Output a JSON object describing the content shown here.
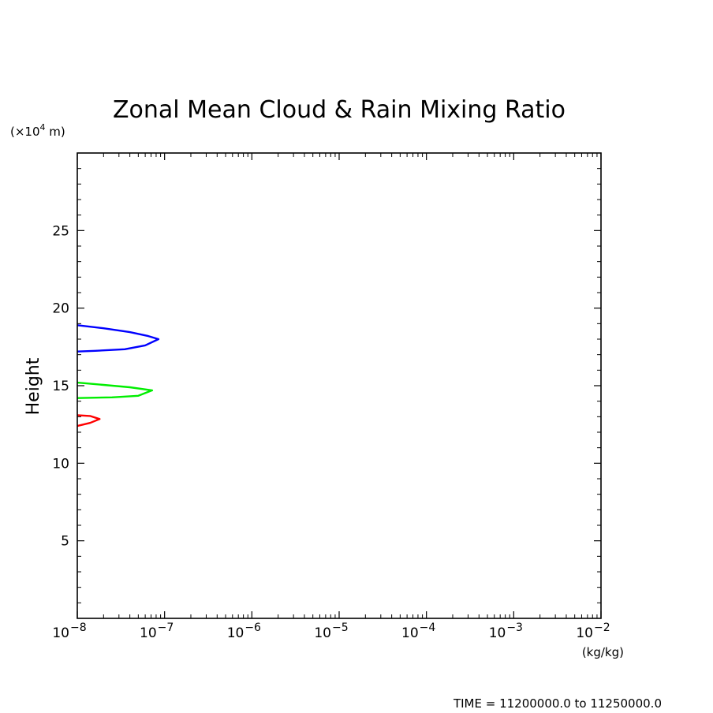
{
  "chart_data": {
    "type": "line",
    "title": "Zonal Mean Cloud & Rain Mixing Ratio",
    "ylabel": "Height",
    "y_unit_label": "(×10",
    "y_unit_exp": "4",
    "y_unit_tail": " m)",
    "x_unit_label": "(kg/kg)",
    "footer": "TIME = 11200000.0 to 11250000.0",
    "x_scale": "log",
    "xlim": [
      1e-08,
      0.01
    ],
    "ylim": [
      0,
      30
    ],
    "x_ticks": [
      {
        "base": "10",
        "exp": "−8"
      },
      {
        "base": "10",
        "exp": "−7"
      },
      {
        "base": "10",
        "exp": "−6"
      },
      {
        "base": "10",
        "exp": "−5"
      },
      {
        "base": "10",
        "exp": "−4"
      },
      {
        "base": "10",
        "exp": "−3"
      },
      {
        "base": "10",
        "exp": "−2"
      }
    ],
    "y_ticks": [
      "5",
      "10",
      "15",
      "20",
      "25"
    ],
    "grid": false,
    "series": [
      {
        "color": "#0000ff",
        "points": [
          [
            1e-08,
            18.9
          ],
          [
            2e-08,
            18.7
          ],
          [
            4e-08,
            18.45
          ],
          [
            6.5e-08,
            18.2
          ],
          [
            8.5e-08,
            18.0
          ],
          [
            6e-08,
            17.6
          ],
          [
            3.5e-08,
            17.35
          ],
          [
            1.6e-08,
            17.25
          ],
          [
            1e-08,
            17.2
          ]
        ]
      },
      {
        "color": "#00ee00",
        "points": [
          [
            1e-08,
            15.2
          ],
          [
            2e-08,
            15.05
          ],
          [
            4e-08,
            14.9
          ],
          [
            7.2e-08,
            14.7
          ],
          [
            5e-08,
            14.35
          ],
          [
            2.5e-08,
            14.25
          ],
          [
            1e-08,
            14.2
          ]
        ]
      },
      {
        "color": "#ff0000",
        "points": [
          [
            1e-08,
            13.1
          ],
          [
            1.4e-08,
            13.05
          ],
          [
            1.8e-08,
            12.85
          ],
          [
            1.4e-08,
            12.6
          ],
          [
            1e-08,
            12.4
          ]
        ]
      }
    ]
  }
}
